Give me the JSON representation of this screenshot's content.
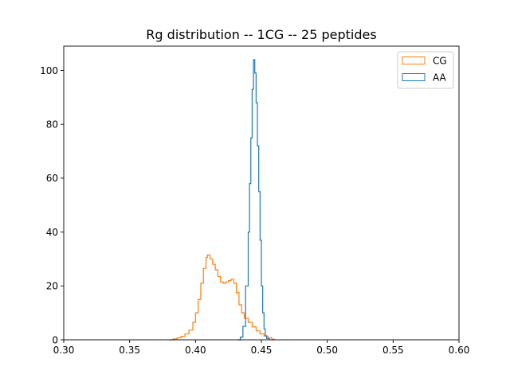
{
  "chart_data": {
    "type": "histogram",
    "title": "Rg distribution -- 1CG -- 25 peptides",
    "xlabel": "",
    "ylabel": "",
    "xlim": [
      0.3,
      0.6
    ],
    "ylim": [
      0,
      109
    ],
    "x_ticks": [
      "0.30",
      "0.35",
      "0.40",
      "0.45",
      "0.50",
      "0.55",
      "0.60"
    ],
    "y_ticks": [
      "0",
      "20",
      "40",
      "60",
      "80",
      "100"
    ],
    "grid": false,
    "legend_position": "top-right",
    "series": [
      {
        "name": "CG",
        "color": "#ff7f0e",
        "histtype": "step",
        "points": [
          [
            0.38,
            0
          ],
          [
            0.383,
            0.3
          ],
          [
            0.386,
            0.7
          ],
          [
            0.389,
            1.3
          ],
          [
            0.392,
            2.2
          ],
          [
            0.395,
            3.6
          ],
          [
            0.398,
            6.5
          ],
          [
            0.4,
            10
          ],
          [
            0.402,
            15
          ],
          [
            0.404,
            21
          ],
          [
            0.406,
            26.5
          ],
          [
            0.408,
            30.5
          ],
          [
            0.409,
            31.5
          ],
          [
            0.411,
            30
          ],
          [
            0.413,
            28
          ],
          [
            0.415,
            26
          ],
          [
            0.417,
            23.5
          ],
          [
            0.419,
            21.5
          ],
          [
            0.421,
            21
          ],
          [
            0.423,
            21.5
          ],
          [
            0.425,
            22
          ],
          [
            0.427,
            22.5
          ],
          [
            0.429,
            21
          ],
          [
            0.431,
            17.5
          ],
          [
            0.433,
            13
          ],
          [
            0.435,
            10
          ],
          [
            0.437,
            8
          ],
          [
            0.44,
            6.5
          ],
          [
            0.443,
            4.8
          ],
          [
            0.446,
            3.3
          ],
          [
            0.449,
            2.2
          ],
          [
            0.452,
            1.4
          ],
          [
            0.455,
            0.7
          ],
          [
            0.458,
            0.2
          ],
          [
            0.46,
            0
          ]
        ]
      },
      {
        "name": "AA",
        "color": "#1f77b4",
        "histtype": "step",
        "points": [
          [
            0.432,
            0
          ],
          [
            0.434,
            1
          ],
          [
            0.436,
            5
          ],
          [
            0.438,
            20
          ],
          [
            0.44,
            40
          ],
          [
            0.441,
            58
          ],
          [
            0.442,
            75
          ],
          [
            0.443,
            93
          ],
          [
            0.444,
            104
          ],
          [
            0.445,
            99
          ],
          [
            0.446,
            88
          ],
          [
            0.447,
            72
          ],
          [
            0.448,
            55
          ],
          [
            0.449,
            37
          ],
          [
            0.45,
            20
          ],
          [
            0.451,
            10
          ],
          [
            0.452,
            4
          ],
          [
            0.453,
            1.5
          ],
          [
            0.454,
            0.5
          ],
          [
            0.456,
            0
          ]
        ]
      }
    ]
  }
}
